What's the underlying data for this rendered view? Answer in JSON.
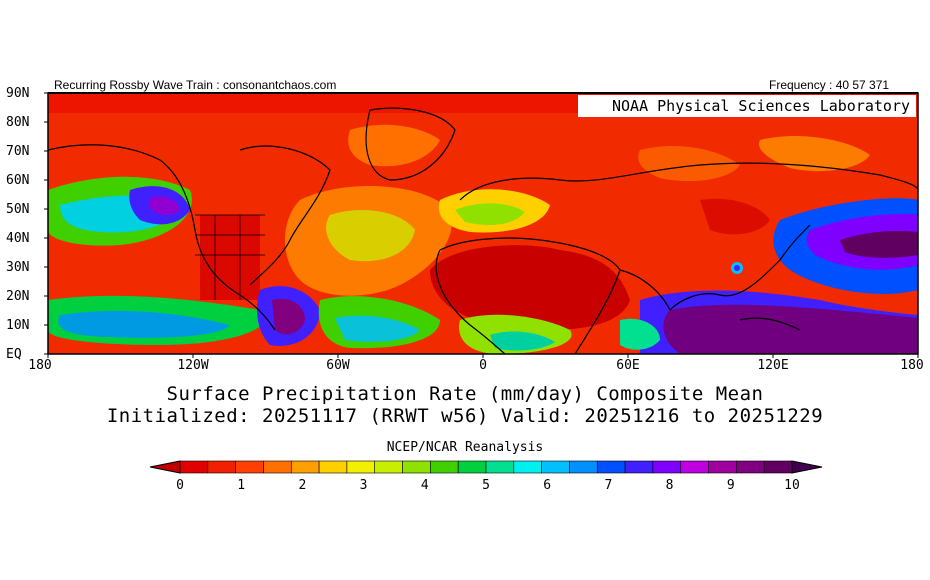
{
  "header": {
    "left_text": "Recurring Rossby Wave Train : consonantchaos.com",
    "right_text": "Frequency : 40 57 371"
  },
  "map": {
    "credit": "NOAA Physical Sciences Laboratory",
    "lat_ticks": [
      "90N",
      "80N",
      "70N",
      "60N",
      "50N",
      "40N",
      "30N",
      "20N",
      "10N",
      "EQ"
    ],
    "lon_ticks": [
      "180",
      "120W",
      "60W",
      "0",
      "60E",
      "120E",
      "180"
    ],
    "lat_range": [
      0,
      90
    ],
    "lon_range": [
      -180,
      180
    ]
  },
  "titles": {
    "line1": "Surface Precipitation Rate (mm/day) Composite Mean",
    "line2": "Initialized: 20251117 (RRWT w56) Valid: 20251216 to 20251229",
    "source": "NCEP/NCAR Reanalysis"
  },
  "colorbar": {
    "ticks": [
      "0",
      "1",
      "2",
      "3",
      "4",
      "5",
      "6",
      "7",
      "8",
      "9",
      "10"
    ],
    "colors": [
      "#e00000",
      "#f02000",
      "#ff4000",
      "#ff7000",
      "#ffa000",
      "#ffd000",
      "#f0f000",
      "#c8ef00",
      "#90e000",
      "#40d000",
      "#00d040",
      "#00e090",
      "#00f0f0",
      "#00c0ff",
      "#0090ff",
      "#0050ff",
      "#4020ff",
      "#8000ff",
      "#c000e0",
      "#a000a0",
      "#800080",
      "#600060"
    ],
    "low_color": "#c00000",
    "high_color": "#400050"
  }
}
